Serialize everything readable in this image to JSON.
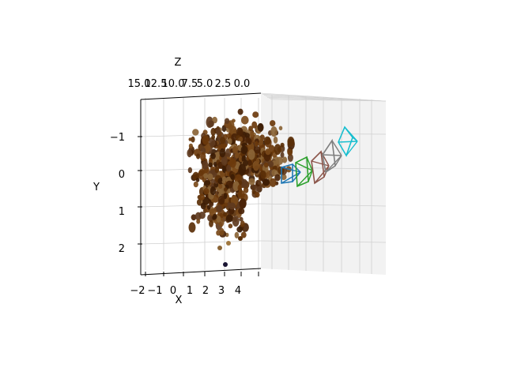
{
  "chart_data": {
    "type": "scatter",
    "projection": "3d",
    "title": "",
    "xlabel": "X",
    "ylabel": "Y",
    "zlabel": "Z",
    "x_ticks": [
      "−2",
      "−1",
      "0",
      "1",
      "2",
      "3",
      "4"
    ],
    "y_ticks": [
      "−1",
      "0",
      "1",
      "2"
    ],
    "z_ticks": [
      "15.0",
      "12.5",
      "10.0",
      "7.5",
      "5.0",
      "2.5",
      "0.0"
    ],
    "xlim": [
      -2.3,
      5.0
    ],
    "ylim": [
      2.8,
      -1.8
    ],
    "zlim": [
      0,
      15.5
    ],
    "grid": true,
    "point_cloud": {
      "description": "reconstructed 3D points, brown tones",
      "color": "#5a2f08",
      "approx_count": 600
    },
    "camera_frustums": [
      {
        "color": "#1f77b4"
      },
      {
        "color": "#2ca02c"
      },
      {
        "color": "#8c564b"
      },
      {
        "color": "#7f7f7f"
      },
      {
        "color": "#17becf"
      }
    ],
    "colors": {
      "grid": "#d0d0d0",
      "pane": "#f2f2f2",
      "axis": "#000000"
    }
  }
}
